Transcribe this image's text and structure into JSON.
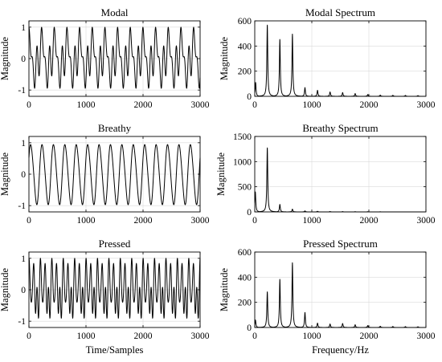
{
  "chart_data": [
    {
      "type": "line",
      "id": "modal",
      "title": "Modal",
      "xlabel": "",
      "ylabel": "Magnitude",
      "xlim": [
        0,
        3000
      ],
      "ylim": [
        -1.2,
        1.2
      ],
      "xticks": [
        0,
        1000,
        2000,
        3000
      ],
      "yticks": [
        -1,
        0,
        1
      ],
      "grid": true,
      "signal": {
        "kind": "waveform",
        "period": 222,
        "harmonics": [
          [
            1,
            1.0
          ],
          [
            2,
            0.7
          ],
          [
            3,
            0.85
          ]
        ],
        "phases": [
          1.6,
          0.4,
          2.1
        ],
        "peak": 1.0
      }
    },
    {
      "type": "line",
      "id": "modal-spectrum",
      "title": "Modal Spectrum",
      "xlabel": "",
      "ylabel": "Magnitude",
      "xlim": [
        0,
        3000
      ],
      "ylim": [
        0,
        600
      ],
      "xticks": [
        0,
        1000,
        2000,
        3000
      ],
      "yticks": [
        0,
        200,
        400,
        600
      ],
      "grid": true,
      "signal": {
        "kind": "spectrum",
        "peaks": [
          [
            15,
            110
          ],
          [
            220,
            570
          ],
          [
            440,
            455
          ],
          [
            660,
            495
          ],
          [
            880,
            70
          ],
          [
            1100,
            48
          ],
          [
            1320,
            35
          ],
          [
            1540,
            30
          ],
          [
            1760,
            22
          ],
          [
            1980,
            14
          ],
          [
            2200,
            10
          ],
          [
            2420,
            8
          ],
          [
            2640,
            7
          ],
          [
            2860,
            6
          ]
        ]
      }
    },
    {
      "type": "line",
      "id": "breathy",
      "title": "Breathy",
      "xlabel": "",
      "ylabel": "Magnitude",
      "xlim": [
        0,
        3000
      ],
      "ylim": [
        -1.2,
        1.2
      ],
      "xticks": [
        0,
        1000,
        2000,
        3000
      ],
      "yticks": [
        -1,
        0,
        1
      ],
      "grid": true,
      "signal": {
        "kind": "waveform",
        "period": 200,
        "harmonics": [
          [
            1,
            1.0
          ],
          [
            2,
            0.08
          ]
        ],
        "phases": [
          0.5,
          1.2
        ],
        "peak": 0.97
      }
    },
    {
      "type": "line",
      "id": "breathy-spectrum",
      "title": "Breathy Spectrum",
      "xlabel": "",
      "ylabel": "Magnitude",
      "xlim": [
        0,
        3000
      ],
      "ylim": [
        0,
        1500
      ],
      "xticks": [
        0,
        1000,
        2000,
        3000
      ],
      "yticks": [
        0,
        500,
        1000,
        1500
      ],
      "grid": true,
      "signal": {
        "kind": "spectrum",
        "peaks": [
          [
            10,
            400
          ],
          [
            220,
            1280
          ],
          [
            440,
            150
          ],
          [
            660,
            55
          ],
          [
            880,
            20
          ],
          [
            1100,
            12
          ],
          [
            1320,
            8
          ],
          [
            1540,
            6
          ],
          [
            1760,
            5
          ],
          [
            1980,
            4
          ],
          [
            2200,
            3
          ]
        ]
      }
    },
    {
      "type": "line",
      "id": "pressed",
      "title": "Pressed",
      "xlabel": "Time/Samples",
      "ylabel": "Magnitude",
      "xlim": [
        0,
        3000
      ],
      "ylim": [
        -1.2,
        1.2
      ],
      "xticks": [
        0,
        1000,
        2000,
        3000
      ],
      "yticks": [
        -1,
        0,
        1
      ],
      "grid": true,
      "signal": {
        "kind": "waveform",
        "period": 200,
        "harmonics": [
          [
            1,
            0.55
          ],
          [
            2,
            0.75
          ],
          [
            3,
            1.0
          ],
          [
            4,
            0.45
          ]
        ],
        "phases": [
          0.3,
          1.9,
          0.8,
          2.5
        ],
        "peak": 1.0
      }
    },
    {
      "type": "line",
      "id": "pressed-spectrum",
      "title": "Pressed Spectrum",
      "xlabel": "Frequency/Hz",
      "ylabel": "Magnitude",
      "xlim": [
        0,
        3000
      ],
      "ylim": [
        0,
        600
      ],
      "xticks": [
        0,
        1000,
        2000,
        3000
      ],
      "yticks": [
        0,
        200,
        400,
        600
      ],
      "grid": true,
      "signal": {
        "kind": "spectrum",
        "peaks": [
          [
            12,
            60
          ],
          [
            220,
            285
          ],
          [
            440,
            385
          ],
          [
            660,
            515
          ],
          [
            880,
            120
          ],
          [
            1100,
            35
          ],
          [
            1320,
            28
          ],
          [
            1540,
            32
          ],
          [
            1760,
            22
          ],
          [
            1980,
            15
          ],
          [
            2200,
            10
          ],
          [
            2420,
            8
          ],
          [
            2640,
            7
          ],
          [
            2860,
            6
          ]
        ]
      }
    }
  ]
}
